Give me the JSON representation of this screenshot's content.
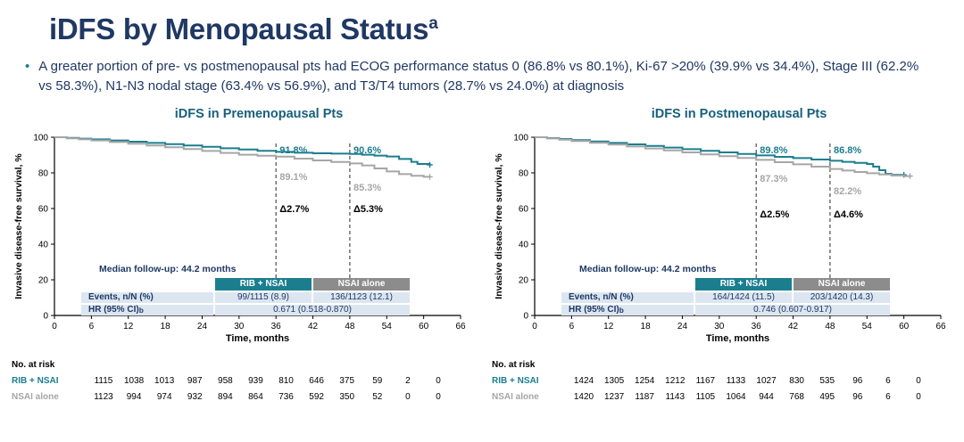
{
  "slide": {
    "title": "iDFS by Menopausal Status",
    "title_sup": "a",
    "bullet_marker": "•",
    "bullet_text": "A greater portion of pre- vs postmenopausal pts had ECOG performance status 0 (86.8% vs 80.1%), Ki-67 >20% (39.9% vs 34.4%), Stage III (62.2% vs 58.3%), N1-N3 nodal stage (63.4% vs 56.9%), and T3/T4 tumors (28.7% vs 24.0%) at diagnosis"
  },
  "colors": {
    "navy": "#1F3864",
    "teal": "#1B7E8F",
    "gray": "#A6A6A6",
    "grayhdr": "#8C8C8C",
    "rowbg": "#DCE6F1",
    "chart_title": "#17607D",
    "black": "#000000"
  },
  "chart_data": [
    {
      "type": "line",
      "subtype": "kaplan-meier",
      "title": "iDFS in Premenopausal Pts",
      "xlabel": "Time, months",
      "ylabel": "Invasive disease-free survival, %",
      "xlim": [
        0,
        66
      ],
      "ylim": [
        0,
        100
      ],
      "xticks": [
        0,
        6,
        12,
        18,
        24,
        30,
        36,
        42,
        48,
        54,
        60,
        66
      ],
      "yticks": [
        0,
        20,
        40,
        60,
        80,
        100
      ],
      "grid": false,
      "dashed_vlines": [
        36,
        48
      ],
      "median_followup": "Median follow-up: 44.2 months",
      "series": [
        {
          "name": "RIB + NSAI",
          "color": "teal",
          "points": [
            [
              0,
              100
            ],
            [
              2,
              99.6
            ],
            [
              4,
              99.2
            ],
            [
              6,
              98.8
            ],
            [
              9,
              98.2
            ],
            [
              12,
              97.5
            ],
            [
              15,
              96.8
            ],
            [
              18,
              96.1
            ],
            [
              21,
              95.4
            ],
            [
              24,
              94.6
            ],
            [
              27,
              93.8
            ],
            [
              30,
              93.1
            ],
            [
              33,
              92.4
            ],
            [
              36,
              91.8
            ],
            [
              39,
              91.3
            ],
            [
              42,
              91.0
            ],
            [
              45,
              90.8
            ],
            [
              48,
              90.6
            ],
            [
              50,
              90.2
            ],
            [
              52,
              89.7
            ],
            [
              54,
              89.2
            ],
            [
              56,
              87.8
            ],
            [
              58,
              86.2
            ],
            [
              59,
              85.0
            ],
            [
              61,
              84.5
            ]
          ]
        },
        {
          "name": "NSAI alone",
          "color": "gray",
          "points": [
            [
              0,
              100
            ],
            [
              2,
              99.4
            ],
            [
              4,
              98.8
            ],
            [
              6,
              98.2
            ],
            [
              9,
              97.3
            ],
            [
              12,
              96.4
            ],
            [
              15,
              95.4
            ],
            [
              18,
              94.4
            ],
            [
              21,
              93.4
            ],
            [
              24,
              92.3
            ],
            [
              27,
              91.2
            ],
            [
              30,
              90.2
            ],
            [
              33,
              89.6
            ],
            [
              36,
              89.1
            ],
            [
              39,
              88.0
            ],
            [
              42,
              87.0
            ],
            [
              45,
              86.1
            ],
            [
              48,
              85.3
            ],
            [
              50,
              84.2
            ],
            [
              52,
              82.5
            ],
            [
              54,
              80.8
            ],
            [
              56,
              79.3
            ],
            [
              58,
              78.4
            ],
            [
              60,
              77.8
            ],
            [
              61,
              77.8
            ]
          ]
        }
      ],
      "annotations": [
        {
          "text": "91.8%",
          "x": 36.3,
          "y": 93,
          "color": "teal"
        },
        {
          "text": "90.6%",
          "x": 48.3,
          "y": 93,
          "color": "teal"
        },
        {
          "text": "89.1%",
          "x": 36.3,
          "y": 78,
          "color": "gray"
        },
        {
          "text": "85.3%",
          "x": 48.3,
          "y": 72,
          "color": "gray"
        },
        {
          "text": "Δ2.7%",
          "x": 36.3,
          "y": 60,
          "color": "black"
        },
        {
          "text": "Δ5.3%",
          "x": 48.3,
          "y": 60,
          "color": "black"
        }
      ],
      "table": {
        "headers": [
          "RIB + NSAI",
          "NSAI alone"
        ],
        "events_label": "Events, n/N (%)",
        "events_values": [
          "99/1115 (8.9)",
          "136/1123 (12.1)"
        ],
        "hr_label": "HR (95% CI)",
        "hr_sup": "b",
        "hr_value": "0.671 (0.518-0.870)"
      },
      "at_risk": {
        "label": "No. at risk",
        "rows": [
          {
            "name": "RIB + NSAI",
            "color": "teal",
            "counts": [
              1115,
              1038,
              1013,
              987,
              958,
              939,
              810,
              646,
              375,
              59,
              2,
              0
            ]
          },
          {
            "name": "NSAI alone",
            "color": "gray",
            "counts": [
              1123,
              994,
              974,
              932,
              894,
              864,
              736,
              592,
              350,
              52,
              0,
              0
            ]
          }
        ]
      }
    },
    {
      "type": "line",
      "subtype": "kaplan-meier",
      "title": "iDFS in Postmenopausal Pts",
      "xlabel": "Time, months",
      "ylabel": "Invasive disease-free survival, %",
      "xlim": [
        0,
        66
      ],
      "ylim": [
        0,
        100
      ],
      "xticks": [
        0,
        6,
        12,
        18,
        24,
        30,
        36,
        42,
        48,
        54,
        60,
        66
      ],
      "yticks": [
        0,
        20,
        40,
        60,
        80,
        100
      ],
      "grid": false,
      "dashed_vlines": [
        36,
        48
      ],
      "median_followup": "Median follow-up: 44.2 months",
      "series": [
        {
          "name": "RIB + NSAI",
          "color": "teal",
          "points": [
            [
              0,
              100
            ],
            [
              2,
              99.5
            ],
            [
              4,
              99.0
            ],
            [
              6,
              98.4
            ],
            [
              9,
              97.6
            ],
            [
              12,
              96.8
            ],
            [
              15,
              96.0
            ],
            [
              18,
              95.1
            ],
            [
              21,
              94.2
            ],
            [
              24,
              93.3
            ],
            [
              27,
              92.4
            ],
            [
              30,
              91.5
            ],
            [
              33,
              90.6
            ],
            [
              36,
              89.8
            ],
            [
              39,
              89.0
            ],
            [
              42,
              88.3
            ],
            [
              45,
              87.5
            ],
            [
              48,
              86.8
            ],
            [
              50,
              86.2
            ],
            [
              52,
              85.6
            ],
            [
              54,
              85.0
            ],
            [
              55,
              83.5
            ],
            [
              56,
              81.5
            ],
            [
              57,
              79.5
            ],
            [
              58,
              78.9
            ],
            [
              60,
              78.9
            ]
          ]
        },
        {
          "name": "NSAI alone",
          "color": "gray",
          "points": [
            [
              0,
              100
            ],
            [
              2,
              99.3
            ],
            [
              4,
              98.6
            ],
            [
              6,
              97.9
            ],
            [
              9,
              96.9
            ],
            [
              12,
              95.9
            ],
            [
              15,
              94.8
            ],
            [
              18,
              93.7
            ],
            [
              21,
              92.6
            ],
            [
              24,
              91.5
            ],
            [
              27,
              90.4
            ],
            [
              30,
              89.4
            ],
            [
              33,
              88.4
            ],
            [
              36,
              87.3
            ],
            [
              39,
              86.0
            ],
            [
              42,
              84.8
            ],
            [
              45,
              83.5
            ],
            [
              48,
              82.2
            ],
            [
              50,
              81.3
            ],
            [
              52,
              80.5
            ],
            [
              54,
              79.8
            ],
            [
              56,
              79.1
            ],
            [
              58,
              78.5
            ],
            [
              60,
              78.2
            ],
            [
              61,
              78.2
            ]
          ]
        }
      ],
      "annotations": [
        {
          "text": "89.8%",
          "x": 36.3,
          "y": 93,
          "color": "teal"
        },
        {
          "text": "86.8%",
          "x": 48.3,
          "y": 93,
          "color": "teal"
        },
        {
          "text": "87.3%",
          "x": 36.3,
          "y": 77,
          "color": "gray"
        },
        {
          "text": "82.2%",
          "x": 48.3,
          "y": 70,
          "color": "gray"
        },
        {
          "text": "Δ2.5%",
          "x": 36.3,
          "y": 57,
          "color": "black"
        },
        {
          "text": "Δ4.6%",
          "x": 48.3,
          "y": 57,
          "color": "black"
        }
      ],
      "table": {
        "headers": [
          "RIB + NSAI",
          "NSAI alone"
        ],
        "events_label": "Events, n/N (%)",
        "events_values": [
          "164/1424 (11.5)",
          "203/1420 (14.3)"
        ],
        "hr_label": "HR (95% CI)",
        "hr_sup": "b",
        "hr_value": "0.746 (0.607-0.917)"
      },
      "at_risk": {
        "label": "No. at risk",
        "rows": [
          {
            "name": "RIB + NSAI",
            "color": "teal",
            "counts": [
              1424,
              1305,
              1254,
              1212,
              1167,
              1133,
              1027,
              830,
              535,
              96,
              6,
              0
            ]
          },
          {
            "name": "NSAI alone",
            "color": "gray",
            "counts": [
              1420,
              1237,
              1187,
              1143,
              1105,
              1064,
              944,
              768,
              495,
              96,
              6,
              0
            ]
          }
        ]
      }
    }
  ]
}
